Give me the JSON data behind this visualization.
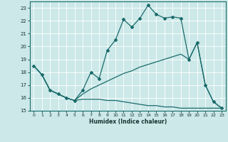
{
  "xlabel": "Humidex (Indice chaleur)",
  "bg_color": "#cce8e8",
  "grid_color": "#ffffff",
  "line_color": "#1a6b6b",
  "xlim": [
    -0.5,
    23.5
  ],
  "ylim": [
    15,
    23.5
  ],
  "yticks": [
    15,
    16,
    17,
    18,
    19,
    20,
    21,
    22,
    23
  ],
  "xticks": [
    0,
    1,
    2,
    3,
    4,
    5,
    6,
    7,
    8,
    9,
    10,
    11,
    12,
    13,
    14,
    15,
    16,
    17,
    18,
    19,
    20,
    21,
    22,
    23
  ],
  "line1_x": [
    0,
    1,
    2,
    3,
    4,
    5,
    6,
    7,
    8,
    9,
    10,
    11,
    12,
    13,
    14,
    15,
    16,
    17,
    18,
    19,
    20,
    21,
    22,
    23
  ],
  "line1_y": [
    18.5,
    17.8,
    16.6,
    16.3,
    16.0,
    15.8,
    16.6,
    18.0,
    17.5,
    19.7,
    20.5,
    22.1,
    21.5,
    22.2,
    23.2,
    22.5,
    22.2,
    22.3,
    22.2,
    19.0,
    20.3,
    17.0,
    15.7,
    15.2
  ],
  "line2_x": [
    0,
    1,
    2,
    3,
    4,
    5,
    6,
    7,
    8,
    9,
    10,
    11,
    12,
    13,
    14,
    15,
    16,
    17,
    18,
    19,
    20,
    21,
    22,
    23
  ],
  "line2_y": [
    18.5,
    17.8,
    16.6,
    16.3,
    16.0,
    15.8,
    15.9,
    15.9,
    15.9,
    15.8,
    15.8,
    15.7,
    15.6,
    15.5,
    15.4,
    15.4,
    15.3,
    15.3,
    15.2,
    15.2,
    15.2,
    15.2,
    15.2,
    15.2
  ],
  "line3_x": [
    0,
    1,
    2,
    3,
    4,
    5,
    6,
    7,
    8,
    9,
    10,
    11,
    12,
    13,
    14,
    15,
    16,
    17,
    18,
    19,
    20,
    21,
    22,
    23
  ],
  "line3_y": [
    18.5,
    17.8,
    16.6,
    16.3,
    16.0,
    15.8,
    16.3,
    16.7,
    17.0,
    17.3,
    17.6,
    17.9,
    18.1,
    18.4,
    18.6,
    18.8,
    19.0,
    19.2,
    19.4,
    19.0,
    20.3,
    17.0,
    15.7,
    15.2
  ]
}
